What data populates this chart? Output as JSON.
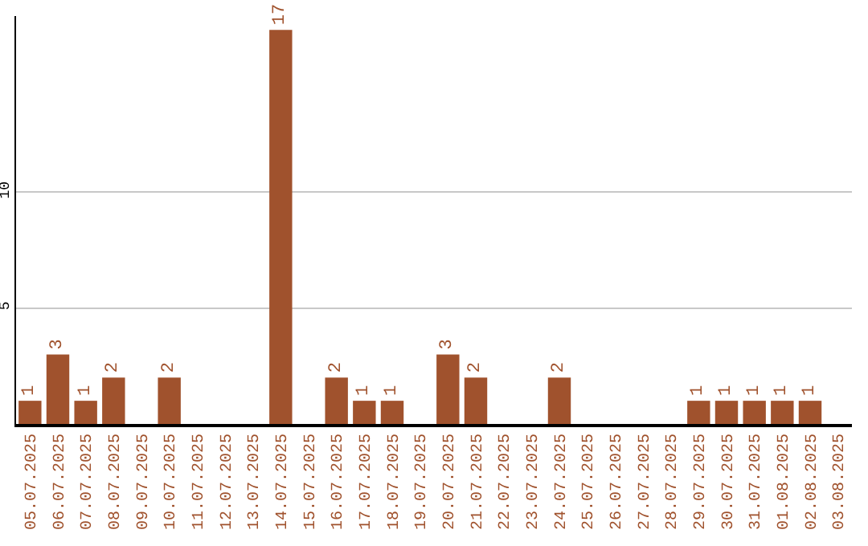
{
  "chart_data": {
    "type": "bar",
    "categories": [
      "05.07.2025",
      "06.07.2025",
      "07.07.2025",
      "08.07.2025",
      "09.07.2025",
      "10.07.2025",
      "11.07.2025",
      "12.07.2025",
      "13.07.2025",
      "14.07.2025",
      "15.07.2025",
      "16.07.2025",
      "17.07.2025",
      "18.07.2025",
      "19.07.2025",
      "20.07.2025",
      "21.07.2025",
      "22.07.2025",
      "23.07.2025",
      "24.07.2025",
      "25.07.2025",
      "26.07.2025",
      "27.07.2025",
      "28.07.2025",
      "29.07.2025",
      "30.07.2025",
      "31.07.2025",
      "01.08.2025",
      "02.08.2025",
      "03.08.2025"
    ],
    "values": [
      1,
      3,
      1,
      2,
      null,
      2,
      null,
      null,
      null,
      17,
      null,
      2,
      1,
      1,
      null,
      3,
      2,
      null,
      null,
      2,
      null,
      null,
      null,
      null,
      1,
      1,
      1,
      1,
      1,
      null
    ],
    "color": "#a0522d",
    "ylim": [
      0,
      17.6
    ],
    "yticks": [
      5,
      10
    ],
    "grid": "y",
    "data_labels": true
  }
}
